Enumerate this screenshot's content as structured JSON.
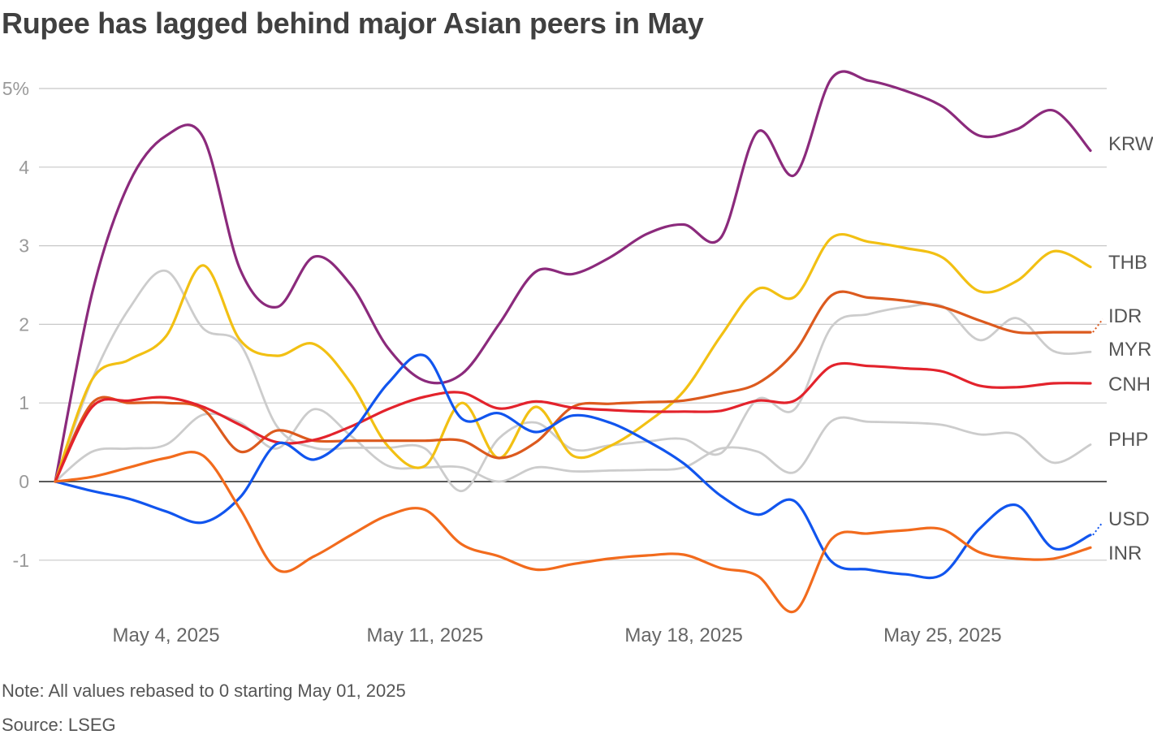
{
  "chart_data": {
    "type": "line",
    "title": "Rupee has lagged behind major Asian peers in May",
    "note": "Note: All values rebased to 0 starting May 01, 2025",
    "source": "Source: LSEG",
    "xlabel": "",
    "ylabel": "",
    "ylim": [
      -1.8,
      5.2
    ],
    "y_ticks": [
      {
        "value": 5,
        "label": "5%"
      },
      {
        "value": 4,
        "label": "4"
      },
      {
        "value": 3,
        "label": "3"
      },
      {
        "value": 2,
        "label": "2"
      },
      {
        "value": 1,
        "label": "1"
      },
      {
        "value": 0,
        "label": "0"
      },
      {
        "value": -1,
        "label": "-1"
      }
    ],
    "x_ticks": [
      {
        "day": 4,
        "label": "May 4, 2025"
      },
      {
        "day": 11,
        "label": "May 11, 2025"
      },
      {
        "day": 18,
        "label": "May 18, 2025"
      },
      {
        "day": 25,
        "label": "May 25, 2025"
      }
    ],
    "x_range": [
      1,
      30
    ],
    "series": [
      {
        "name": "KRW",
        "color": "#8b2a7c",
        "highlight": true,
        "days": [
          1,
          2,
          3,
          4,
          5,
          6,
          7,
          8,
          9,
          10,
          11,
          12,
          13,
          14,
          15,
          16,
          17,
          18,
          19,
          20,
          21,
          22,
          23,
          24,
          25,
          26,
          27,
          28,
          29,
          30
        ],
        "values": [
          0,
          2.4,
          3.8,
          4.4,
          4.38,
          2.7,
          2.22,
          2.86,
          2.5,
          1.7,
          1.28,
          1.37,
          2.0,
          2.67,
          2.64,
          2.85,
          3.15,
          3.27,
          3.1,
          4.45,
          3.9,
          5.13,
          5.1,
          4.97,
          4.77,
          4.4,
          4.48,
          4.72,
          4.21,
          null
        ]
      },
      {
        "name": "THB",
        "color": "#f2c013",
        "highlight": true,
        "days": [
          1,
          2,
          3,
          4,
          5,
          6,
          7,
          8,
          9,
          10,
          11,
          12,
          13,
          14,
          15,
          16,
          17,
          18,
          19,
          20,
          21,
          22,
          23,
          24,
          25,
          26,
          27,
          28,
          29,
          30
        ],
        "values": [
          0,
          1.3,
          1.55,
          1.85,
          2.75,
          1.8,
          1.6,
          1.75,
          1.25,
          0.45,
          0.2,
          1.0,
          0.3,
          0.95,
          0.33,
          0.45,
          0.75,
          1.15,
          1.85,
          2.45,
          2.35,
          3.1,
          3.05,
          2.97,
          2.85,
          2.42,
          2.55,
          2.93,
          2.73,
          null
        ]
      },
      {
        "name": "IDR",
        "color": "#dc5a1e",
        "highlight": true,
        "days": [
          1,
          2,
          3,
          4,
          5,
          6,
          7,
          8,
          9,
          10,
          11,
          12,
          13,
          14,
          15,
          16,
          17,
          18,
          19,
          20,
          21,
          22,
          23,
          24,
          25,
          26,
          27,
          28,
          29,
          30
        ],
        "values": [
          0,
          1.0,
          1.0,
          1.0,
          0.92,
          0.38,
          0.65,
          0.52,
          0.52,
          0.52,
          0.52,
          0.52,
          0.3,
          0.5,
          0.95,
          0.99,
          1.01,
          1.03,
          1.12,
          1.25,
          1.65,
          2.37,
          2.34,
          2.3,
          2.22,
          2.05,
          1.9,
          1.9,
          1.9,
          null
        ]
      },
      {
        "name": "MYR",
        "color": "#cccccc",
        "highlight": false,
        "days": [
          1,
          2,
          3,
          4,
          5,
          6,
          7,
          8,
          9,
          10,
          11,
          12,
          13,
          14,
          15,
          16,
          17,
          18,
          19,
          20,
          21,
          22,
          23,
          24,
          25,
          26,
          27,
          28,
          29,
          30
        ],
        "values": [
          0,
          1.3,
          2.2,
          2.68,
          1.95,
          1.75,
          0.7,
          0.43,
          0.43,
          0.43,
          0.42,
          -0.12,
          0.55,
          0.75,
          0.41,
          0.46,
          0.51,
          0.54,
          0.36,
          1.05,
          0.92,
          1.97,
          2.13,
          2.22,
          2.23,
          1.8,
          2.08,
          1.66,
          1.65,
          null
        ]
      },
      {
        "name": "CNH",
        "color": "#e3232c",
        "highlight": true,
        "days": [
          1,
          2,
          3,
          4,
          5,
          6,
          7,
          8,
          9,
          10,
          11,
          12,
          13,
          14,
          15,
          16,
          17,
          18,
          19,
          20,
          21,
          22,
          23,
          24,
          25,
          26,
          27,
          28,
          29,
          30
        ],
        "values": [
          0,
          0.95,
          1.03,
          1.07,
          0.95,
          0.72,
          0.5,
          0.53,
          0.7,
          0.92,
          1.08,
          1.13,
          0.93,
          1.02,
          0.94,
          0.91,
          0.89,
          0.89,
          0.9,
          1.03,
          1.03,
          1.47,
          1.47,
          1.44,
          1.4,
          1.22,
          1.2,
          1.25,
          1.25,
          null
        ]
      },
      {
        "name": "PHP",
        "color": "#cccccc",
        "highlight": false,
        "days": [
          1,
          2,
          3,
          4,
          5,
          6,
          7,
          8,
          9,
          10,
          11,
          12,
          13,
          14,
          15,
          16,
          17,
          18,
          19,
          20,
          21,
          22,
          23,
          24,
          25,
          26,
          27,
          28,
          29,
          30
        ],
        "values": [
          0,
          0.38,
          0.42,
          0.47,
          0.85,
          0.75,
          0.42,
          0.92,
          0.58,
          0.2,
          0.18,
          0.18,
          0.0,
          0.18,
          0.13,
          0.14,
          0.15,
          0.18,
          0.42,
          0.38,
          0.12,
          0.77,
          0.76,
          0.75,
          0.72,
          0.6,
          0.6,
          0.24,
          0.47,
          null
        ]
      },
      {
        "name": "USD",
        "color": "#1155ee",
        "highlight": true,
        "days": [
          1,
          2,
          3,
          4,
          5,
          6,
          7,
          8,
          9,
          10,
          11,
          12,
          13,
          14,
          15,
          16,
          17,
          18,
          19,
          20,
          21,
          22,
          23,
          24,
          25,
          26,
          27,
          28,
          29,
          30
        ],
        "values": [
          0,
          -0.12,
          -0.22,
          -0.38,
          -0.52,
          -0.2,
          0.48,
          0.28,
          0.62,
          1.25,
          1.6,
          0.8,
          0.87,
          0.63,
          0.84,
          0.75,
          0.52,
          0.23,
          -0.18,
          -0.42,
          -0.25,
          -1.02,
          -1.12,
          -1.18,
          -1.18,
          -0.6,
          -0.3,
          -0.85,
          -0.68,
          null
        ]
      },
      {
        "name": "INR",
        "color": "#f26b1d",
        "highlight": true,
        "days": [
          1,
          2,
          3,
          4,
          5,
          6,
          7,
          8,
          9,
          10,
          11,
          12,
          13,
          14,
          15,
          16,
          17,
          18,
          19,
          20,
          21,
          22,
          23,
          24,
          25,
          26,
          27,
          28,
          29,
          30
        ],
        "values": [
          0,
          0.06,
          0.18,
          0.3,
          0.33,
          -0.35,
          -1.12,
          -0.95,
          -0.68,
          -0.43,
          -0.36,
          -0.8,
          -0.95,
          -1.12,
          -1.05,
          -0.98,
          -0.94,
          -0.93,
          -1.1,
          -1.2,
          -1.65,
          -0.73,
          -0.66,
          -0.62,
          -0.61,
          -0.9,
          -0.98,
          -0.98,
          -0.84,
          null
        ]
      }
    ]
  }
}
